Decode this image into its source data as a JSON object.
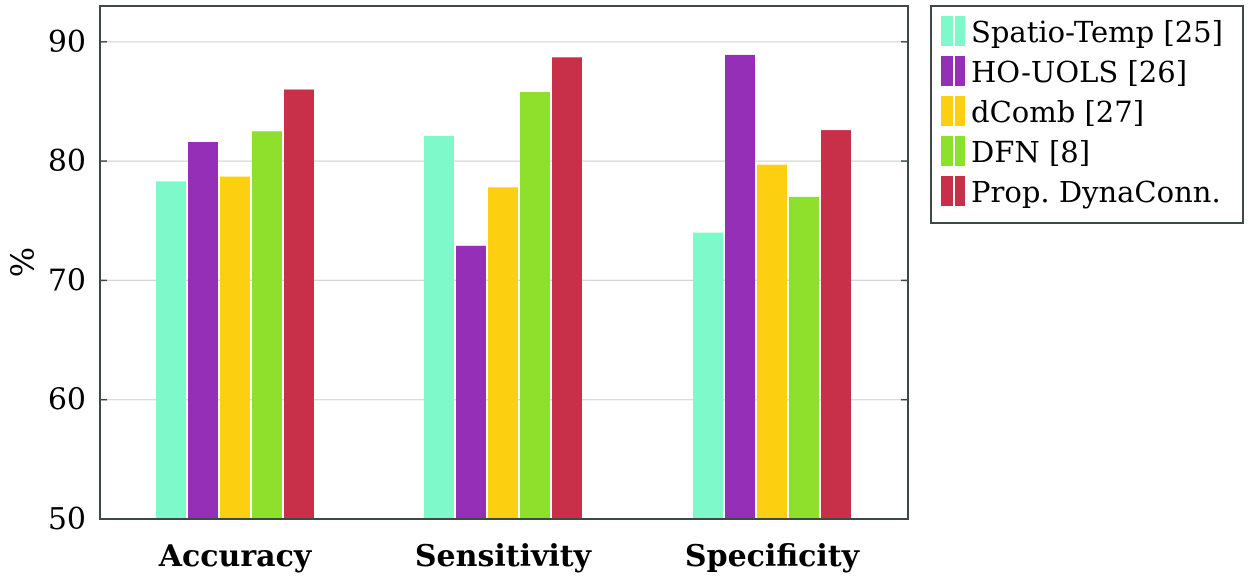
{
  "chart_data": {
    "type": "bar",
    "categories": [
      "Accuracy",
      "Sensitivity",
      "Specificity"
    ],
    "series": [
      {
        "name": "Spatio-Temp [25]",
        "color": "#7ef9c9",
        "values": [
          78.3,
          82.1,
          74.0
        ]
      },
      {
        "name": "HO-UOLS [26]",
        "color": "#962fb7",
        "values": [
          81.6,
          72.9,
          88.9
        ]
      },
      {
        "name": "dComb [27]",
        "color": "#fcd010",
        "values": [
          78.7,
          77.8,
          79.7
        ]
      },
      {
        "name": "DFN [8]",
        "color": "#8fe02c",
        "values": [
          82.5,
          85.8,
          77.0
        ]
      },
      {
        "name": "Prop. DynaConn.",
        "color": "#c8304a",
        "values": [
          86.0,
          88.7,
          82.6
        ]
      }
    ],
    "title": "",
    "xlabel": "",
    "ylabel": "%",
    "ylim": [
      50,
      93
    ],
    "yticks": [
      50,
      60,
      70,
      80,
      90
    ],
    "grid": true,
    "legend_position": "outside-right-top"
  }
}
